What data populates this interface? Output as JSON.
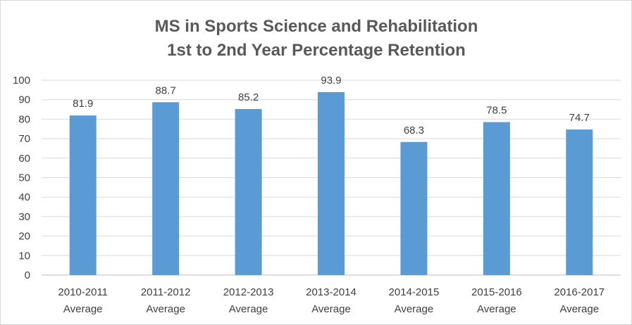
{
  "chart_data": {
    "type": "bar",
    "title_lines": [
      "MS in Sports Science and Rehabilitation",
      "1st to 2nd Year Percentage Retention"
    ],
    "categories": [
      [
        "2010-2011",
        "Average"
      ],
      [
        "2011-2012",
        "Average"
      ],
      [
        "2012-2013",
        "Average"
      ],
      [
        "2013-2014",
        "Average"
      ],
      [
        "2014-2015",
        "Average"
      ],
      [
        "2015-2016",
        "Average"
      ],
      [
        "2016-2017",
        "Average"
      ]
    ],
    "values": [
      81.9,
      88.7,
      85.2,
      93.9,
      68.3,
      78.5,
      74.7
    ],
    "value_labels": [
      "81.9",
      "88.7",
      "85.2",
      "93.9",
      "68.3",
      "78.5",
      "74.7"
    ],
    "ylim": [
      0,
      100
    ],
    "yticks": [
      0,
      10,
      20,
      30,
      40,
      50,
      60,
      70,
      80,
      90,
      100
    ],
    "ytick_labels": [
      "0",
      "10",
      "20",
      "30",
      "40",
      "50",
      "60",
      "70",
      "80",
      "90",
      "100"
    ],
    "grid": true,
    "legend": "none",
    "bar_color": "#5b9bd5"
  }
}
